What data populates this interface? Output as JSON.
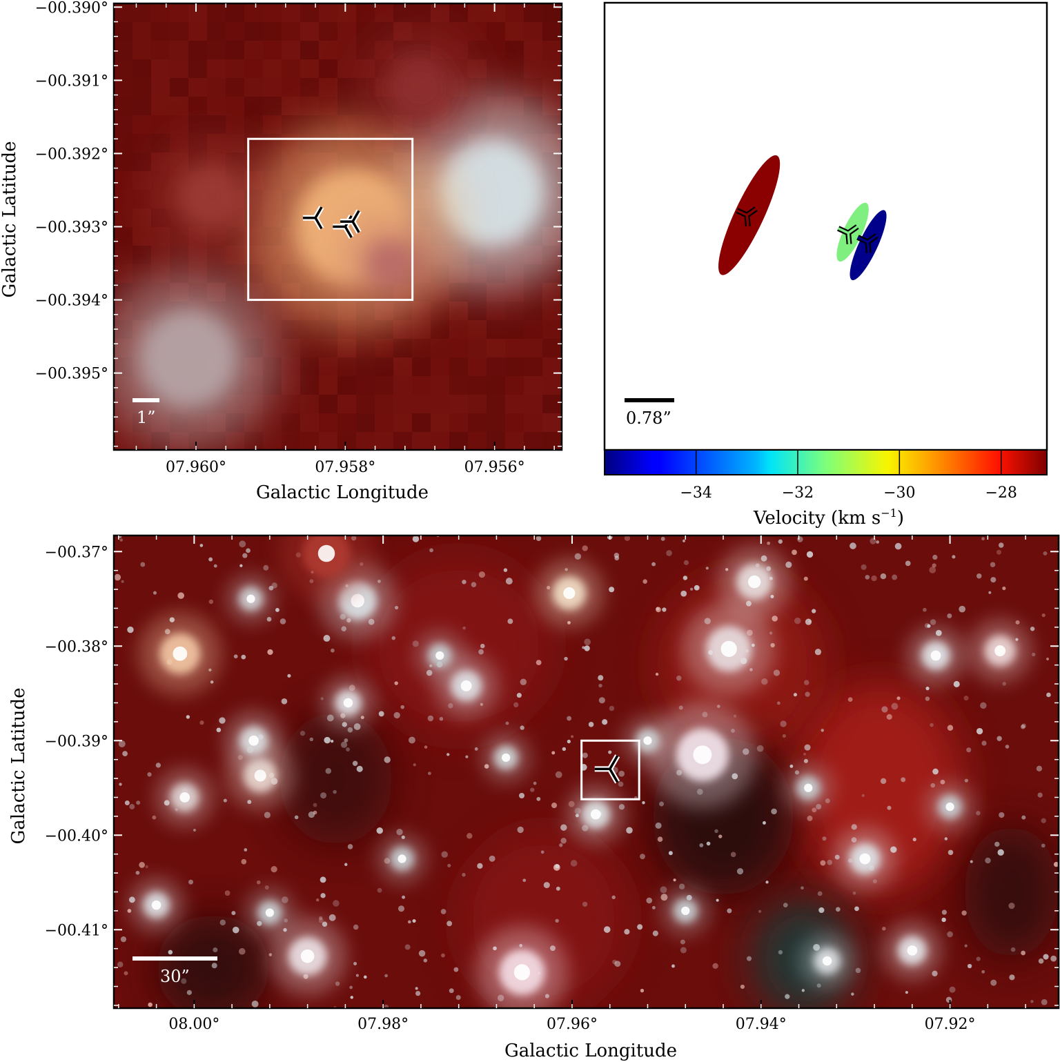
{
  "chart_data": [
    {
      "type": "image",
      "xlabel": "Galactic Longitude",
      "ylabel": "Galactic Latitude",
      "xticks": [
        "07.960°",
        "07.958°",
        "07.956°"
      ],
      "xtick_values": [
        7.96,
        7.958,
        7.956
      ],
      "yticks": [
        "−00.390°",
        "−00.391°",
        "−00.392°",
        "−00.393°",
        "−00.394°",
        "−00.395°"
      ],
      "ytick_values": [
        -0.39,
        -0.391,
        -0.392,
        -0.393,
        -0.394,
        -0.395
      ],
      "xlim": [
        7.9611,
        7.9551
      ],
      "ylim": [
        -0.39605,
        -0.38995
      ],
      "scale_bar_label": "1”",
      "box": {
        "x": [
          7.9593,
          7.9571
        ],
        "y": [
          -0.394,
          -0.3918
        ]
      },
      "markers": [
        {
          "x": 7.9584,
          "y": -0.39288
        },
        {
          "x": 7.958,
          "y": -0.393
        },
        {
          "x": 7.9579,
          "y": -0.39293
        }
      ],
      "bright_sources": [
        {
          "x": 7.95605,
          "y": -0.39253,
          "color": "#d8e6ea",
          "size": 0.0012
        },
        {
          "x": 7.9579,
          "y": -0.393,
          "color": "#f3b57a",
          "size": 0.0013
        },
        {
          "x": 7.9601,
          "y": -0.3948,
          "color": "#b7a6a8",
          "size": 0.0011
        },
        {
          "x": 7.9598,
          "y": -0.3926,
          "color": "#9c3b36",
          "size": 0.0007
        },
        {
          "x": 7.9574,
          "y": -0.3935,
          "color": "#b86a68",
          "size": 0.0005
        },
        {
          "x": 7.957,
          "y": -0.3911,
          "color": "#8e2e2e",
          "size": 0.0007
        }
      ],
      "background_color": "#6e0e0b"
    },
    {
      "type": "scatter",
      "xlabel": "",
      "ylabel": "",
      "scale_bar_label": "0.78”",
      "colorbar": {
        "label": "Velocity (km s",
        "label_sup": "−1",
        "label_end": ")",
        "range": [
          -35.8,
          -27.1
        ],
        "ticks": [
          -34,
          -32,
          -30,
          -28
        ],
        "tick_labels": [
          "−34",
          "−32",
          "−30",
          "−28"
        ]
      },
      "ellipses": [
        {
          "velocity": -27.3,
          "color": "#8b0000",
          "cx": 0.327,
          "cy": 0.475,
          "rx": 0.033,
          "ry": 0.147,
          "angle": 25
        },
        {
          "velocity": -30.6,
          "color": "#7ff07f",
          "cx": 0.561,
          "cy": 0.513,
          "rx": 0.021,
          "ry": 0.072,
          "angle": 25
        },
        {
          "velocity": -35.5,
          "color": "#00008b",
          "cx": 0.596,
          "cy": 0.542,
          "rx": 0.021,
          "ry": 0.086,
          "angle": 25
        }
      ],
      "markers": [
        {
          "x": 0.322,
          "y": 0.475
        },
        {
          "x": 0.551,
          "y": 0.515
        },
        {
          "x": 0.595,
          "y": 0.535
        }
      ]
    },
    {
      "type": "image",
      "xlabel": "Galactic Longitude",
      "ylabel": "Galactic Latitude",
      "xticks": [
        "08.00°",
        "07.98°",
        "07.96°",
        "07.94°",
        "07.92°"
      ],
      "xtick_values": [
        8.0,
        7.98,
        7.96,
        7.94,
        7.92
      ],
      "yticks": [
        "−00.37°",
        "−00.38°",
        "−00.39°",
        "−00.40°",
        "−00.41°"
      ],
      "ytick_values": [
        -0.37,
        -0.38,
        -0.39,
        -0.4,
        -0.41
      ],
      "xlim": [
        8.0085,
        7.9085
      ],
      "ylim": [
        -0.4183,
        -0.3683
      ],
      "scale_bar_label": "30”",
      "box": {
        "x": [
          7.959,
          7.9529
        ],
        "y": [
          -0.3962,
          -0.39
        ]
      },
      "markers": [
        {
          "x": 7.956,
          "y": -0.393
        }
      ],
      "bright_sources": [
        {
          "x": 7.9462,
          "y": -0.3915,
          "color": "#f4e6ee",
          "size": 0.0022
        },
        {
          "x": 7.9653,
          "y": -0.4145,
          "color": "#f6e0e8",
          "size": 0.0019
        },
        {
          "x": 7.9434,
          "y": -0.3803,
          "color": "#e8dfe2",
          "size": 0.0019
        },
        {
          "x": 8.0015,
          "y": -0.3808,
          "color": "#f3c8a6",
          "size": 0.0017
        },
        {
          "x": 7.9827,
          "y": -0.3752,
          "color": "#dce6ea",
          "size": 0.0016
        },
        {
          "x": 7.988,
          "y": -0.4128,
          "color": "#ece2e6",
          "size": 0.0016
        },
        {
          "x": 7.9603,
          "y": -0.3744,
          "color": "#f2e0c8",
          "size": 0.0014
        },
        {
          "x": 7.9407,
          "y": -0.3732,
          "color": "#e8e0e0",
          "size": 0.0015
        },
        {
          "x": 7.993,
          "y": -0.3937,
          "color": "#ead8d0",
          "size": 0.0014
        },
        {
          "x": 7.9712,
          "y": -0.3842,
          "color": "#dfe2e6",
          "size": 0.0013
        },
        {
          "x": 7.9937,
          "y": -0.39,
          "color": "#dde0e2",
          "size": 0.0012
        },
        {
          "x": 7.9147,
          "y": -0.3805,
          "color": "#ecd8d8",
          "size": 0.0013
        },
        {
          "x": 7.9215,
          "y": -0.381,
          "color": "#e2e6ea",
          "size": 0.0012
        },
        {
          "x": 7.929,
          "y": -0.4025,
          "color": "#dfe6ea",
          "size": 0.0013
        },
        {
          "x": 7.924,
          "y": -0.4122,
          "color": "#e6e6ea",
          "size": 0.0012
        },
        {
          "x": 8.001,
          "y": -0.396,
          "color": "#e0d6d6",
          "size": 0.0012
        },
        {
          "x": 7.9575,
          "y": -0.3978,
          "color": "#dfe4e6",
          "size": 0.0012
        },
        {
          "x": 8.004,
          "y": -0.4074,
          "color": "#dde0e4",
          "size": 0.0011
        },
        {
          "x": 7.9837,
          "y": -0.386,
          "color": "#e2e2e6",
          "size": 0.0011
        },
        {
          "x": 7.933,
          "y": -0.4133,
          "color": "#dfe2e6",
          "size": 0.0011
        },
        {
          "x": 7.986,
          "y": -0.3702,
          "color": "#b03a30",
          "size": 0.002
        },
        {
          "x": 7.994,
          "y": -0.375,
          "color": "#d0d4d8",
          "size": 0.001
        },
        {
          "x": 7.952,
          "y": -0.39,
          "color": "#d0d6d8",
          "size": 0.001
        },
        {
          "x": 7.967,
          "y": -0.3918,
          "color": "#d0d6d8",
          "size": 0.001
        },
        {
          "x": 7.935,
          "y": -0.395,
          "color": "#c8d0d4",
          "size": 0.001
        },
        {
          "x": 7.92,
          "y": -0.397,
          "color": "#c8d0d4",
          "size": 0.001
        },
        {
          "x": 7.948,
          "y": -0.408,
          "color": "#c8d0d4",
          "size": 0.001
        },
        {
          "x": 7.978,
          "y": -0.4025,
          "color": "#c8d0d4",
          "size": 0.001
        },
        {
          "x": 7.974,
          "y": -0.381,
          "color": "#c8d0d4",
          "size": 0.001
        },
        {
          "x": 7.992,
          "y": -0.4082,
          "color": "#c8d0d4",
          "size": 0.001
        }
      ],
      "dark_clouds": [
        {
          "x": 7.9355,
          "y": -0.413,
          "color": "#123c3a",
          "rx": 0.0055,
          "ry": 0.0045
        },
        {
          "x": 7.944,
          "y": -0.398,
          "color": "#240707",
          "rx": 0.0075,
          "ry": 0.006
        },
        {
          "x": 7.998,
          "y": -0.414,
          "color": "#2a0808",
          "rx": 0.006,
          "ry": 0.004
        },
        {
          "x": 7.985,
          "y": -0.394,
          "color": "#3a0a0a",
          "rx": 0.006,
          "ry": 0.005
        },
        {
          "x": 7.9135,
          "y": -0.406,
          "color": "#2e0808",
          "rx": 0.005,
          "ry": 0.005
        }
      ],
      "glows": [
        {
          "x": 7.9275,
          "y": -0.395,
          "color": "#b3221c",
          "rx": 0.009,
          "ry": 0.007
        },
        {
          "x": 7.942,
          "y": -0.382,
          "color": "#9a1b17",
          "rx": 0.009,
          "ry": 0.006
        },
        {
          "x": 7.972,
          "y": -0.38,
          "color": "#8a1713",
          "rx": 0.01,
          "ry": 0.006
        },
        {
          "x": 7.963,
          "y": -0.409,
          "color": "#8a1713",
          "rx": 0.009,
          "ry": 0.006
        }
      ],
      "background_color": "#6a0d0b"
    }
  ]
}
